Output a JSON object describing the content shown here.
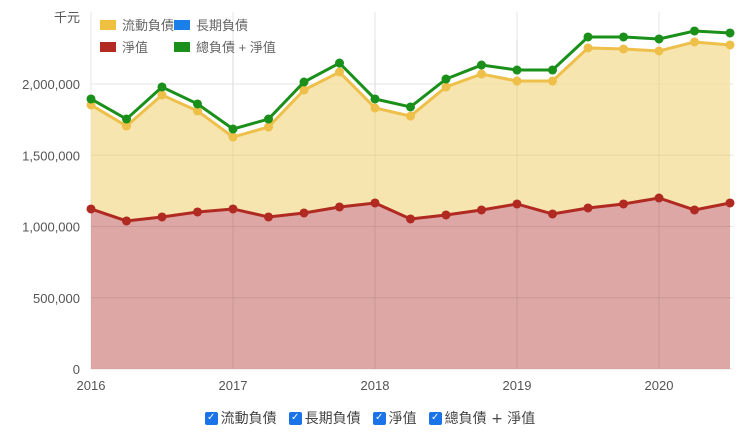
{
  "chart_data": {
    "type": "area",
    "unit_label": "千元",
    "x": [
      2016.0,
      2016.25,
      2016.5,
      2016.75,
      2017.0,
      2017.25,
      2017.5,
      2017.75,
      2018.0,
      2018.25,
      2018.5,
      2018.75,
      2019.0,
      2019.25,
      2019.5,
      2019.75,
      2020.0,
      2020.25,
      2020.5
    ],
    "x_ticks": [
      "2016",
      "2017",
      "2018",
      "2019",
      "2020"
    ],
    "y_ticks": [
      "0",
      "500,000",
      "1,000,000",
      "1,500,000",
      "2,000,000"
    ],
    "ylim": [
      0,
      2400000
    ],
    "series": [
      {
        "name": "淨值",
        "color": "#b22a22",
        "values": [
          1123000,
          1039000,
          1067000,
          1102000,
          1123000,
          1067000,
          1095000,
          1137000,
          1165000,
          1053000,
          1081000,
          1116000,
          1158000,
          1088000,
          1130000,
          1158000,
          1200000,
          1116000,
          1165000
        ]
      },
      {
        "name": "流動負債 (stacked top)",
        "color": "#f0c040",
        "values": [
          1853000,
          1705000,
          1923000,
          1811000,
          1628000,
          1698000,
          1958000,
          2084000,
          1832000,
          1775000,
          1979000,
          2070000,
          2021000,
          2021000,
          2253000,
          2246000,
          2232000,
          2295000,
          2274000
        ]
      },
      {
        "name": "總負債 + 淨值",
        "color": "#1a8f1a",
        "values": [
          1895000,
          1754000,
          1979000,
          1860000,
          1684000,
          1754000,
          2014000,
          2147000,
          1895000,
          1839000,
          2035000,
          2133000,
          2098000,
          2098000,
          2330000,
          2330000,
          2316000,
          2372000,
          2358000
        ]
      }
    ],
    "legend": [
      {
        "label": "流動負債",
        "color": "#f0c040"
      },
      {
        "label": "長期負債",
        "color": "#1a7fe8"
      },
      {
        "label": "淨值",
        "color": "#b22a22"
      },
      {
        "label": "總負債 + 淨值",
        "color": "#1a8f1a"
      }
    ],
    "grid": true
  },
  "bottom_legend": [
    {
      "label": "流動負債",
      "checked": true
    },
    {
      "label": "長期負債",
      "checked": true
    },
    {
      "label": "淨值",
      "checked": true
    },
    {
      "label": "總負債 + 淨值",
      "checked": true
    }
  ]
}
